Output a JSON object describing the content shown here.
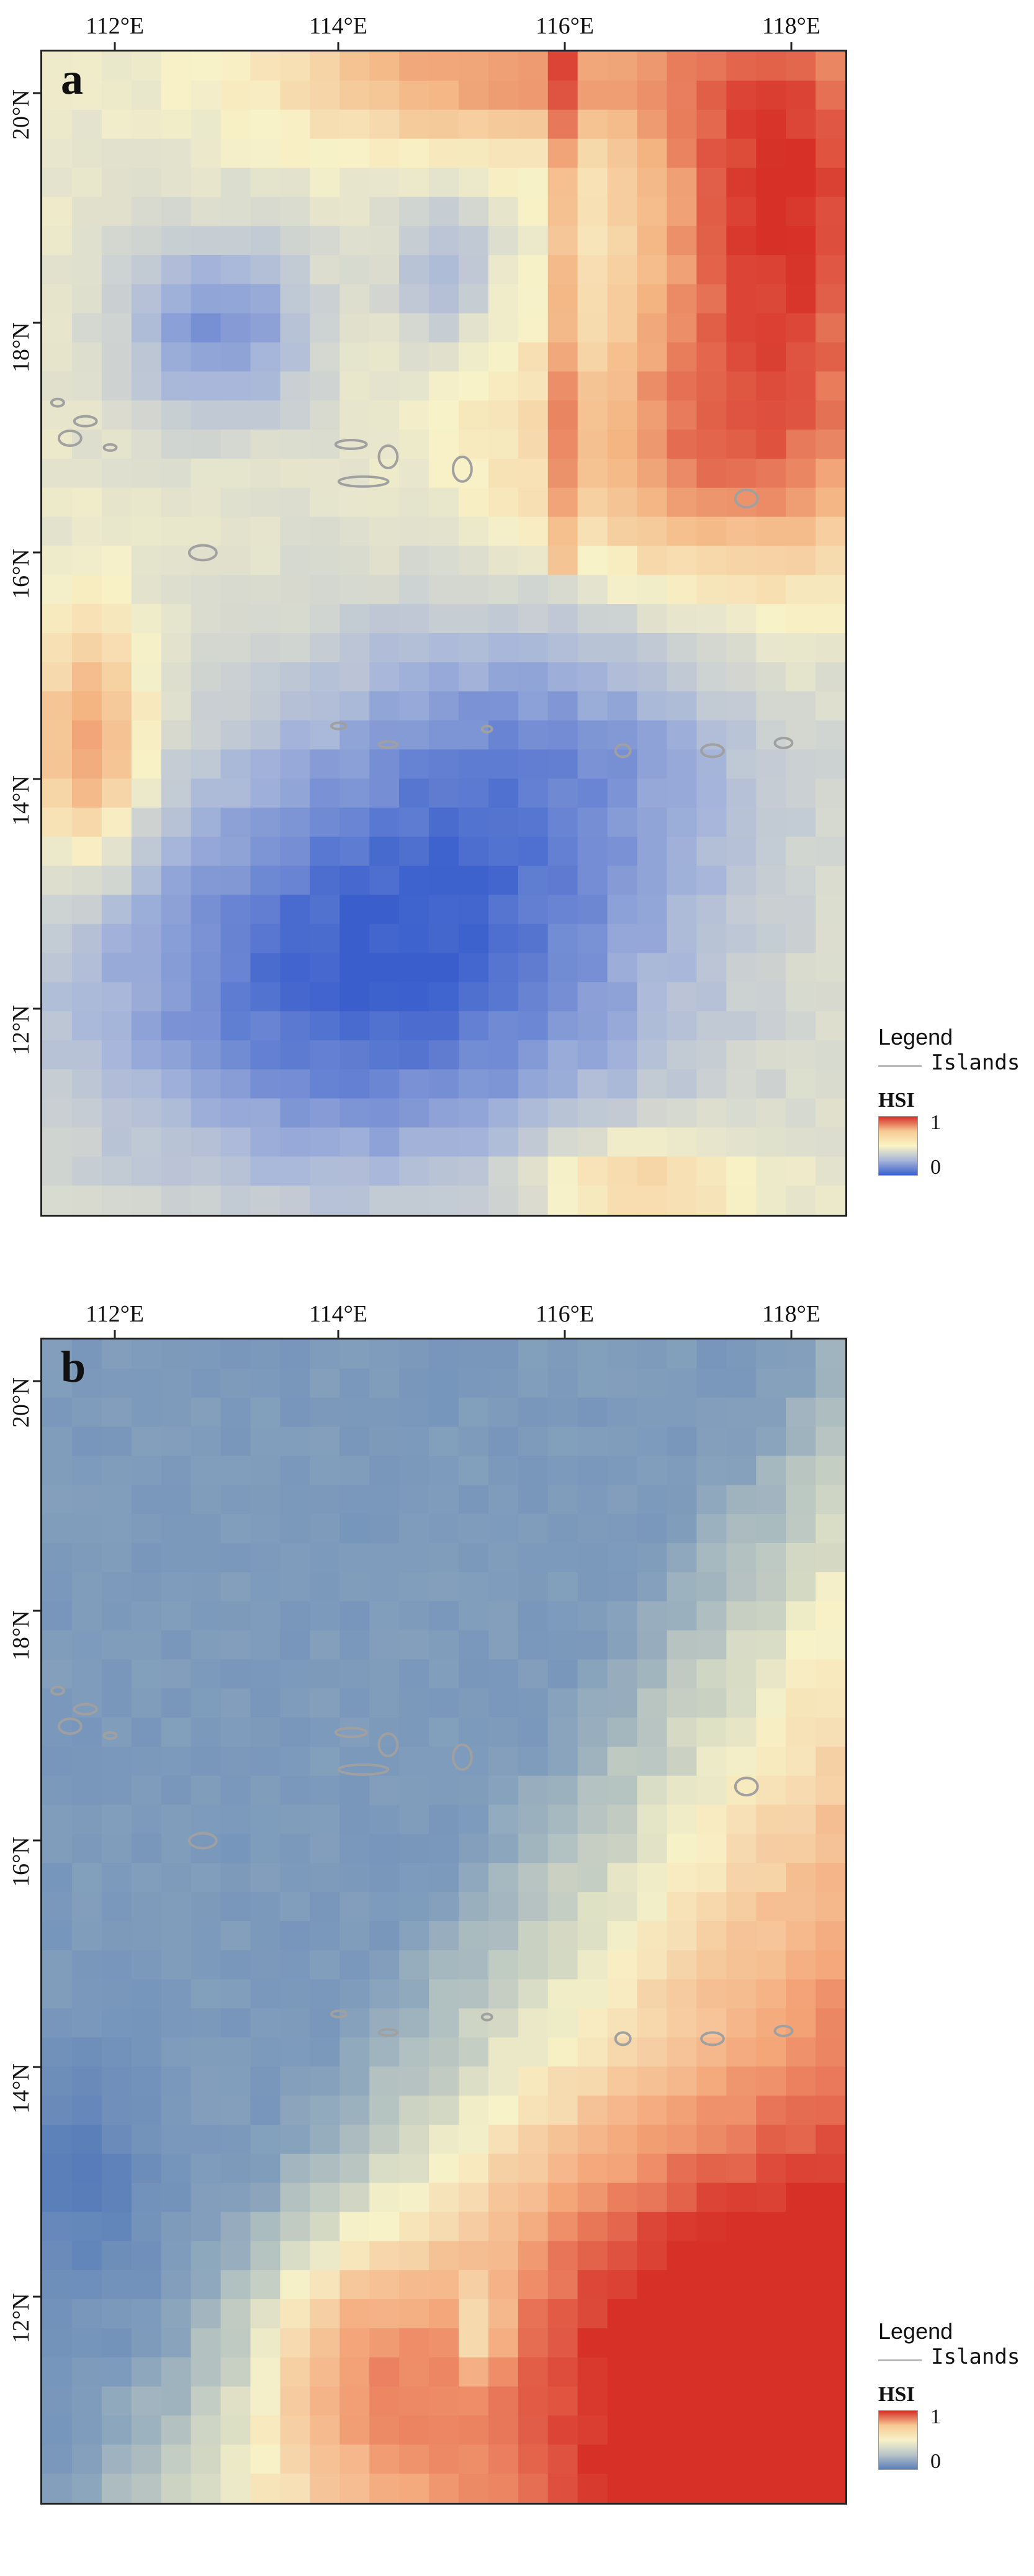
{
  "panels": [
    {
      "letter": "a",
      "x_ticks": [
        "112°E",
        "114°E",
        "116°E",
        "118°E"
      ],
      "y_ticks": [
        "20°N",
        "18°N",
        "16°N",
        "14°N",
        "12°N"
      ],
      "legend": {
        "title": "Legend",
        "islands_label": "Islands",
        "hsi_label": "HSI",
        "max": "1",
        "min": "0",
        "ramp_colors": [
          "#d73027",
          "#f6ca94",
          "#fbf4c4",
          "#a7b6da",
          "#3a5fcd"
        ]
      },
      "palette": {
        "low": "#3a5fcd",
        "mid_low": "#a7b6da",
        "mid": "#f8f2c8",
        "mid_high": "#f4b583",
        "high": "#d73027"
      }
    },
    {
      "letter": "b",
      "x_ticks": [
        "112°E",
        "114°E",
        "116°E",
        "118°E"
      ],
      "y_ticks": [
        "20°N",
        "18°N",
        "16°N",
        "14°N",
        "12°N"
      ],
      "legend": {
        "title": "Legend",
        "islands_label": "Islands",
        "hsi_label": "HSI",
        "max": "1",
        "min": "0",
        "ramp_colors": [
          "#d73027",
          "#f6ca94",
          "#f8f2c8",
          "#b8c4c8",
          "#5a7fb8"
        ]
      },
      "palette": {
        "low": "#4a72b8",
        "mid_low": "#84a0bc",
        "mid": "#f8f2c8",
        "mid_high": "#f4a77a",
        "high": "#d73027"
      }
    }
  ]
}
